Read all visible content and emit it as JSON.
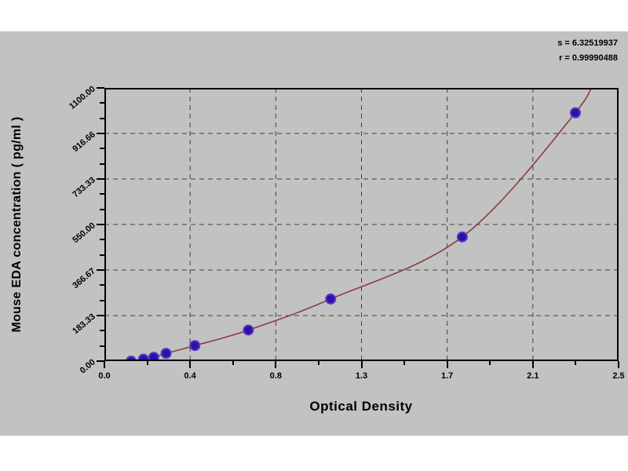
{
  "stats": {
    "s_label": "s = 6.32519937",
    "r_label": "r = 0.99990488"
  },
  "chart_data": {
    "type": "scatter",
    "title": "",
    "xlabel": "Optical Density",
    "ylabel": "Mouse EDA concentration ( pg/ml )",
    "xlim": [
      0,
      2.5
    ],
    "ylim": [
      0,
      1100
    ],
    "x_tick_labels": [
      "0.0",
      "0.4",
      "0.8",
      "1.3",
      "1.7",
      "2.1",
      "2.5"
    ],
    "y_tick_labels": [
      "0.00",
      "183.33",
      "366.67",
      "550.00",
      "733.33",
      "916.66",
      "1100.00"
    ],
    "grid": "dashed gridlines at major ticks, on",
    "legend_position": "none",
    "x": [
      0.13,
      0.19,
      0.24,
      0.3,
      0.44,
      0.7,
      1.1,
      1.74,
      2.29
    ],
    "y": [
      0,
      7.8,
      15.6,
      31.2,
      62.5,
      125,
      250,
      500,
      1000
    ],
    "curve_overlay": "smooth fitted standard curve through all data points, exits top edge near x=2.36",
    "colors": {
      "curve": "#8b3e3e",
      "marker_fill": "#2a12a6",
      "marker_edge": "#5936c8",
      "grid": "#404040",
      "panel_background": "#c2c2c2",
      "plot_background": "#ffffff",
      "axis": "#000000"
    }
  }
}
